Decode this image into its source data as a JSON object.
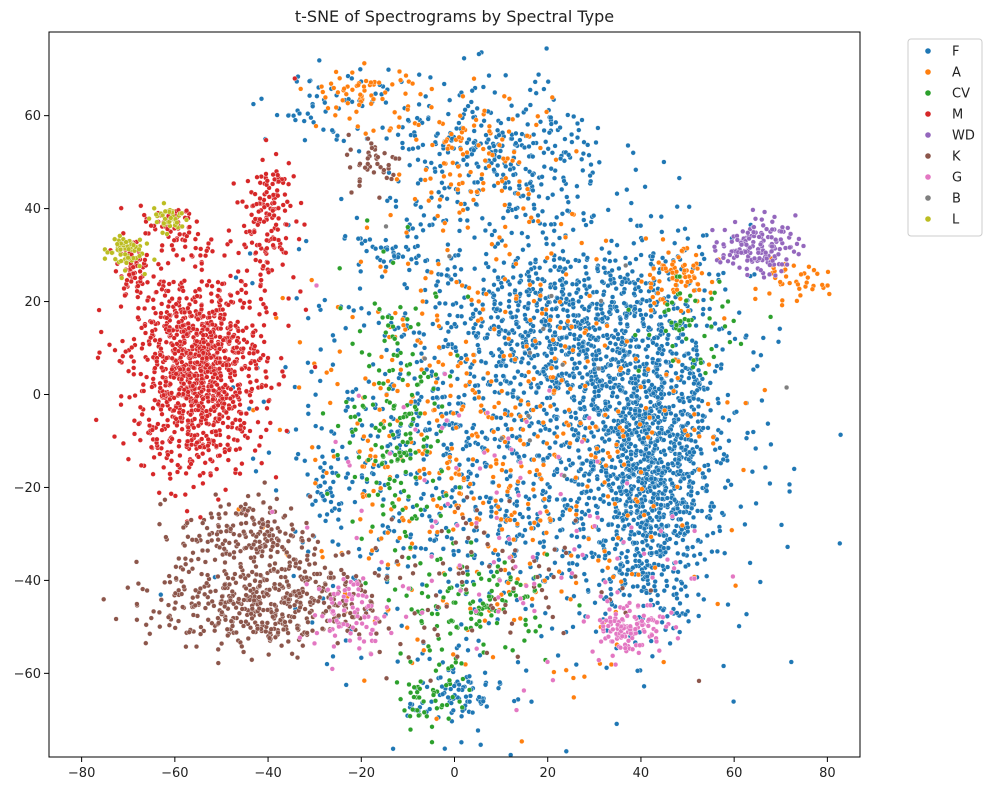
{
  "chart_data": {
    "type": "scatter",
    "title": "t-SNE of Spectrograms by Spectral Type",
    "xlabel": "",
    "ylabel": "",
    "xlim": [
      -87,
      87
    ],
    "ylim": [
      -78,
      78
    ],
    "xticks": [
      -80,
      -60,
      -40,
      -20,
      0,
      20,
      40,
      60,
      80
    ],
    "yticks": [
      -60,
      -40,
      -20,
      0,
      20,
      40,
      60
    ],
    "grid": false,
    "legend_position": "outside-top-right",
    "series": [
      {
        "name": "F",
        "color": "#1f77b4",
        "clusters": [
          {
            "cx": 42,
            "cy": -20,
            "sx": 7,
            "sy": 15,
            "n": 900
          },
          {
            "cx": 25,
            "cy": 15,
            "sx": 15,
            "sy": 9,
            "n": 600
          },
          {
            "cx": 10,
            "cy": -10,
            "sx": 22,
            "sy": 22,
            "n": 1100
          },
          {
            "cx": 10,
            "cy": 50,
            "sx": 12,
            "sy": 9,
            "n": 350
          },
          {
            "cx": 40,
            "cy": 5,
            "sx": 10,
            "sy": 15,
            "n": 400
          },
          {
            "cx": 0,
            "cy": -65,
            "sx": 5,
            "sy": 4,
            "n": 80
          },
          {
            "cx": -27,
            "cy": -22,
            "sx": 2,
            "sy": 4,
            "n": 30
          },
          {
            "cx": -15,
            "cy": 30,
            "sx": 4,
            "sy": 3,
            "n": 40
          },
          {
            "cx": -25,
            "cy": 62,
            "sx": 8,
            "sy": 4,
            "n": 60
          }
        ]
      },
      {
        "name": "A",
        "color": "#ff7f0e",
        "clusters": [
          {
            "cx": 10,
            "cy": -10,
            "sx": 22,
            "sy": 22,
            "n": 500
          },
          {
            "cx": 47,
            "cy": 25,
            "sx": 4,
            "sy": 3,
            "n": 80
          },
          {
            "cx": 72,
            "cy": 24,
            "sx": 4,
            "sy": 2,
            "n": 40
          },
          {
            "cx": -20,
            "cy": 65,
            "sx": 6,
            "sy": 3,
            "n": 60
          },
          {
            "cx": 5,
            "cy": 50,
            "sx": 10,
            "sy": 8,
            "n": 120
          }
        ]
      },
      {
        "name": "CV",
        "color": "#2ca02c",
        "clusters": [
          {
            "cx": -12,
            "cy": -5,
            "sx": 6,
            "sy": 15,
            "n": 180
          },
          {
            "cx": 5,
            "cy": -45,
            "sx": 8,
            "sy": 5,
            "n": 120
          },
          {
            "cx": -5,
            "cy": -65,
            "sx": 4,
            "sy": 4,
            "n": 50
          },
          {
            "cx": 50,
            "cy": 15,
            "sx": 5,
            "sy": 5,
            "n": 50
          }
        ]
      },
      {
        "name": "M",
        "color": "#d62728",
        "clusters": [
          {
            "cx": -55,
            "cy": 5,
            "sx": 7,
            "sy": 11,
            "n": 1100
          },
          {
            "cx": -40,
            "cy": 38,
            "sx": 3,
            "sy": 7,
            "n": 150
          },
          {
            "cx": -69,
            "cy": 27,
            "sx": 2,
            "sy": 3,
            "n": 70
          },
          {
            "cx": -61,
            "cy": 36,
            "sx": 3,
            "sy": 2,
            "n": 50
          }
        ]
      },
      {
        "name": "WD",
        "color": "#9467bd",
        "clusters": [
          {
            "cx": 65,
            "cy": 32,
            "sx": 4,
            "sy": 3,
            "n": 150
          }
        ]
      },
      {
        "name": "K",
        "color": "#8c564b",
        "clusters": [
          {
            "cx": -40,
            "cy": -45,
            "sx": 12,
            "sy": 5,
            "n": 500
          },
          {
            "cx": -45,
            "cy": -30,
            "sx": 7,
            "sy": 4,
            "n": 180
          },
          {
            "cx": -17,
            "cy": 50,
            "sx": 3,
            "sy": 3,
            "n": 40
          },
          {
            "cx": 10,
            "cy": -40,
            "sx": 15,
            "sy": 10,
            "n": 80
          }
        ]
      },
      {
        "name": "G",
        "color": "#e377c2",
        "clusters": [
          {
            "cx": 37,
            "cy": -50,
            "sx": 4,
            "sy": 3,
            "n": 120
          },
          {
            "cx": -22,
            "cy": -47,
            "sx": 4,
            "sy": 4,
            "n": 80
          },
          {
            "cx": 10,
            "cy": -30,
            "sx": 20,
            "sy": 15,
            "n": 100
          }
        ]
      },
      {
        "name": "B",
        "color": "#7f7f7f",
        "clusters": [
          {
            "cx": 15,
            "cy": 10,
            "sx": 20,
            "sy": 20,
            "n": 15
          }
        ]
      },
      {
        "name": "L",
        "color": "#bcbd22",
        "clusters": [
          {
            "cx": -71,
            "cy": 31,
            "sx": 2,
            "sy": 2,
            "n": 60
          },
          {
            "cx": -61,
            "cy": 38,
            "sx": 2,
            "sy": 1.5,
            "n": 40
          }
        ]
      }
    ]
  }
}
